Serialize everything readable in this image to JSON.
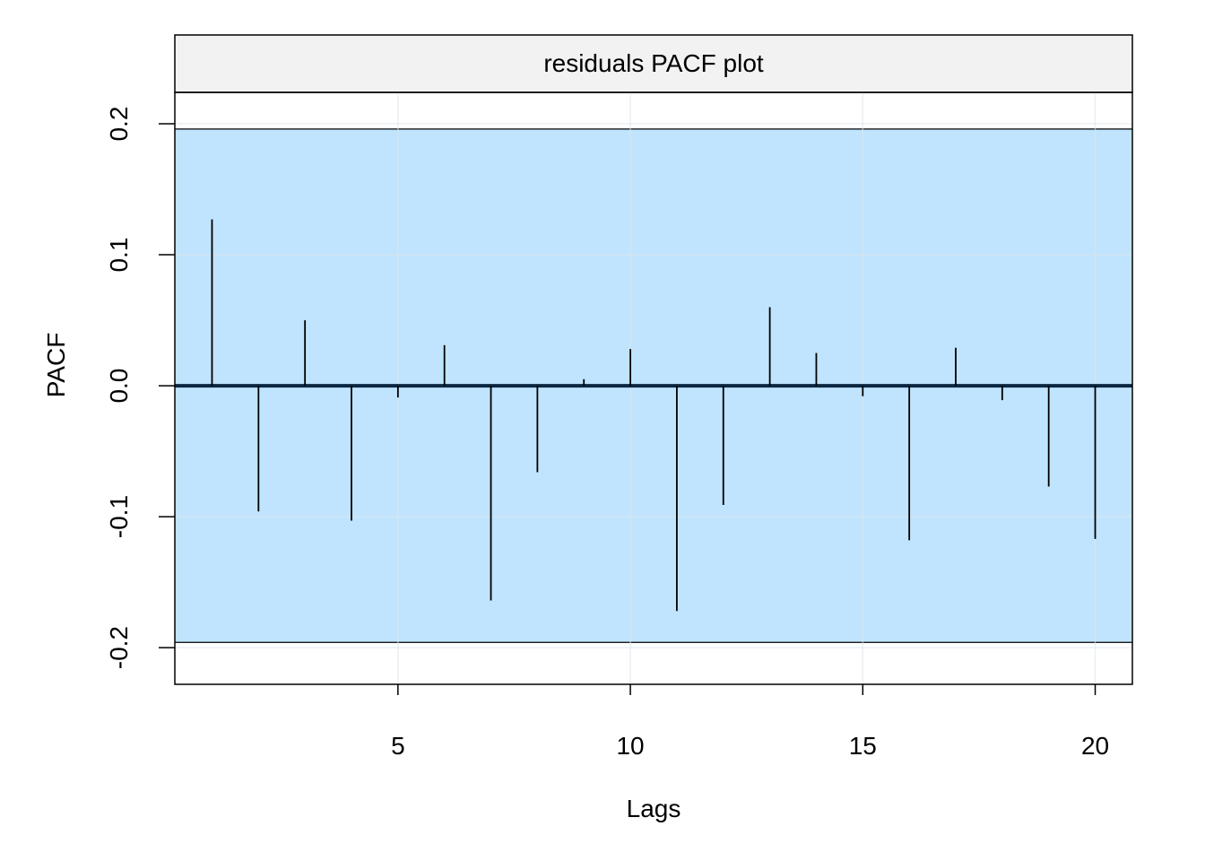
{
  "chart_data": {
    "type": "bar",
    "title": "residuals PACF plot",
    "xlabel": "Lags",
    "ylabel": "PACF",
    "xlim": [
      0.2,
      20.8
    ],
    "ylim": [
      -0.228,
      0.224
    ],
    "xticks": [
      5,
      10,
      15,
      20
    ],
    "xtick_labels": [
      "5",
      "10",
      "15",
      "20"
    ],
    "yticks": [
      -0.2,
      -0.1,
      0.0,
      0.1,
      0.2
    ],
    "ytick_labels": [
      "-0.2",
      "-0.1",
      "0.0",
      "0.1",
      "0.2"
    ],
    "grid": true,
    "confidence_band": [
      -0.196,
      0.196
    ],
    "lags": [
      1,
      2,
      3,
      4,
      5,
      6,
      7,
      8,
      9,
      10,
      11,
      12,
      13,
      14,
      15,
      16,
      17,
      18,
      19,
      20
    ],
    "values": [
      0.127,
      -0.096,
      0.05,
      -0.103,
      -0.009,
      0.031,
      -0.164,
      -0.066,
      0.005,
      0.028,
      -0.172,
      -0.091,
      0.06,
      0.025,
      -0.008,
      -0.118,
      0.029,
      -0.011,
      -0.077,
      -0.117
    ],
    "colors": {
      "band": "#c0e4fd",
      "strip": "#f2f2f2",
      "zero_line": "#0b2741",
      "grid": "#dde6ee",
      "bars": "#000000"
    }
  }
}
